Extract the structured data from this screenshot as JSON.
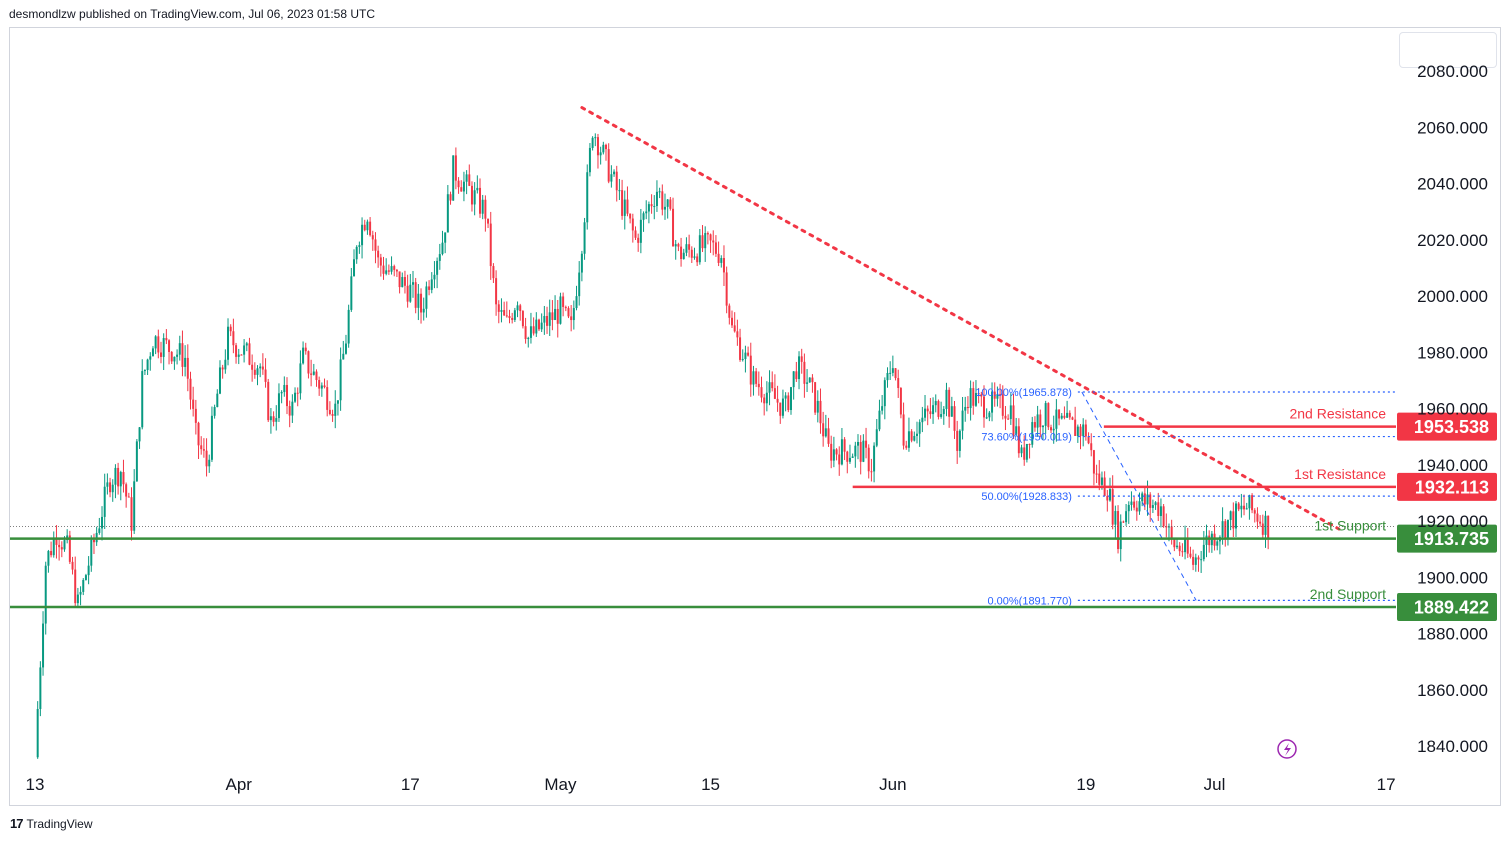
{
  "header": {
    "published": "desmondlzw published on TradingView.com, Jul 06, 2023 01:58 UTC"
  },
  "footer": {
    "logo_icon": "tradingview-logo-icon",
    "brand": "TradingView"
  },
  "colors": {
    "up": "#089981",
    "down": "#f23645",
    "resistance": "#f23645",
    "support": "#388e3c",
    "fib": "#2962ff",
    "trendline": "#f23645",
    "lightning": "#9c27b0"
  },
  "chart_data": {
    "type": "candlestick",
    "x_tick_labels": [
      "13",
      "Apr",
      "17",
      "May",
      "15",
      "Jun",
      "19",
      "Jul",
      "17"
    ],
    "y_tick_labels": [
      "2080.000",
      "2060.000",
      "2040.000",
      "2020.000",
      "2000.000",
      "1980.000",
      "1960.000",
      "1940.000",
      "1920.000",
      "1900.000",
      "1880.000",
      "1860.000",
      "1840.000"
    ],
    "ylim": [
      1834,
      2092
    ],
    "grid": false,
    "levels": [
      {
        "name": "2nd Resistance",
        "label": "2nd Resistance",
        "value": 1953.538,
        "badge": "1953.538",
        "kind": "resistance"
      },
      {
        "name": "1st Resistance",
        "label": "1st Resistance",
        "value": 1932.113,
        "badge": "1932.113",
        "kind": "resistance"
      },
      {
        "name": "1st Support",
        "label": "1st Support",
        "value": 1913.735,
        "badge": "1913.735",
        "kind": "support"
      },
      {
        "name": "2nd Support",
        "label": "2nd Support",
        "value": 1889.422,
        "badge": "1889.422",
        "kind": "support"
      }
    ],
    "fibonacci": [
      {
        "label": "100.00%(1965.878)",
        "value": 1965.878
      },
      {
        "label": "73.60%(1950.019)",
        "value": 1950.019
      },
      {
        "label": "50.00%(1928.833)",
        "value": 1928.833
      },
      {
        "label": "0.00%(1891.770)",
        "value": 1891.77
      }
    ],
    "trendline": {
      "from": {
        "date": "May 03",
        "price": 2067
      },
      "to": {
        "date": "Jul 07",
        "price": 1920
      }
    },
    "current_price": 1918,
    "price_path_keypoints": [
      {
        "date": "Mar 13",
        "price": 1836
      },
      {
        "date": "Mar 14",
        "price": 1905
      },
      {
        "date": "Mar 15",
        "price": 1916
      },
      {
        "date": "Mar 16",
        "price": 1910
      },
      {
        "date": "Mar 17",
        "price": 1890
      },
      {
        "date": "Mar 20",
        "price": 1935
      },
      {
        "date": "Mar 21",
        "price": 1938
      },
      {
        "date": "Mar 22",
        "price": 1920
      },
      {
        "date": "Mar 23",
        "price": 1970
      },
      {
        "date": "Mar 24",
        "price": 1985
      },
      {
        "date": "Mar 27",
        "price": 1978
      },
      {
        "date": "Mar 28",
        "price": 1950
      },
      {
        "date": "Mar 29",
        "price": 1940
      },
      {
        "date": "Mar 30",
        "price": 1965
      },
      {
        "date": "Mar 31",
        "price": 1985
      },
      {
        "date": "Apr 03",
        "price": 1975
      },
      {
        "date": "Apr 04",
        "price": 1955
      },
      {
        "date": "Apr 05",
        "price": 1965
      },
      {
        "date": "Apr 06",
        "price": 1960
      },
      {
        "date": "Apr 07",
        "price": 1978
      },
      {
        "date": "Apr 10",
        "price": 1960
      },
      {
        "date": "Apr 11",
        "price": 1985
      },
      {
        "date": "Apr 12",
        "price": 2020
      },
      {
        "date": "Apr 13",
        "price": 2030
      },
      {
        "date": "Apr 14",
        "price": 2012
      },
      {
        "date": "Apr 17",
        "price": 2002
      },
      {
        "date": "Apr 18",
        "price": 1995
      },
      {
        "date": "Apr 19",
        "price": 2010
      },
      {
        "date": "Apr 20",
        "price": 2020
      },
      {
        "date": "Apr 21",
        "price": 2045
      },
      {
        "date": "Apr 24",
        "price": 2030
      },
      {
        "date": "Apr 25",
        "price": 1995
      },
      {
        "date": "Apr 26",
        "price": 1990
      },
      {
        "date": "Apr 27",
        "price": 2000
      },
      {
        "date": "Apr 28",
        "price": 1985
      },
      {
        "date": "May 01",
        "price": 1995
      },
      {
        "date": "May 02",
        "price": 1988
      },
      {
        "date": "May 03",
        "price": 2020
      },
      {
        "date": "May 04",
        "price": 2060
      },
      {
        "date": "May 05",
        "price": 2050
      },
      {
        "date": "May 08",
        "price": 2020
      },
      {
        "date": "May 09",
        "price": 2030
      },
      {
        "date": "May 10",
        "price": 2038
      },
      {
        "date": "May 11",
        "price": 2030
      },
      {
        "date": "May 12",
        "price": 2015
      },
      {
        "date": "May 15",
        "price": 2018
      },
      {
        "date": "May 16",
        "price": 2015
      },
      {
        "date": "May 17",
        "price": 1988
      },
      {
        "date": "May 18",
        "price": 1980
      },
      {
        "date": "May 19",
        "price": 1970
      },
      {
        "date": "May 22",
        "price": 1960
      },
      {
        "date": "May 23",
        "price": 1975
      },
      {
        "date": "May 24",
        "price": 1970
      },
      {
        "date": "May 25",
        "price": 1960
      },
      {
        "date": "May 26",
        "price": 1945
      },
      {
        "date": "May 29",
        "price": 1945
      },
      {
        "date": "May 30",
        "price": 1940
      },
      {
        "date": "May 31",
        "price": 1962
      },
      {
        "date": "Jun 01",
        "price": 1978
      },
      {
        "date": "Jun 02",
        "price": 1950
      },
      {
        "date": "Jun 05",
        "price": 1960
      },
      {
        "date": "Jun 06",
        "price": 1965
      },
      {
        "date": "Jun 07",
        "price": 1948
      },
      {
        "date": "Jun 08",
        "price": 1965
      },
      {
        "date": "Jun 09",
        "price": 1962
      },
      {
        "date": "Jun 12",
        "price": 1960
      },
      {
        "date": "Jun 13",
        "price": 1942
      },
      {
        "date": "Jun 14",
        "price": 1955
      },
      {
        "date": "Jun 15",
        "price": 1958
      },
      {
        "date": "Jun 16",
        "price": 1955
      },
      {
        "date": "Jun 19",
        "price": 1952
      },
      {
        "date": "Jun 20",
        "price": 1935
      },
      {
        "date": "Jun 21",
        "price": 1932
      },
      {
        "date": "Jun 22",
        "price": 1915
      },
      {
        "date": "Jun 23",
        "price": 1928
      },
      {
        "date": "Jun 26",
        "price": 1925
      },
      {
        "date": "Jun 27",
        "price": 1912
      },
      {
        "date": "Jun 28",
        "price": 1910
      },
      {
        "date": "Jun 29",
        "price": 1905
      },
      {
        "date": "Jun 30",
        "price": 1912
      },
      {
        "date": "Jul 03",
        "price": 1922
      },
      {
        "date": "Jul 04",
        "price": 1925
      },
      {
        "date": "Jul 05",
        "price": 1922
      },
      {
        "date": "Jul 06",
        "price": 1918
      }
    ]
  }
}
